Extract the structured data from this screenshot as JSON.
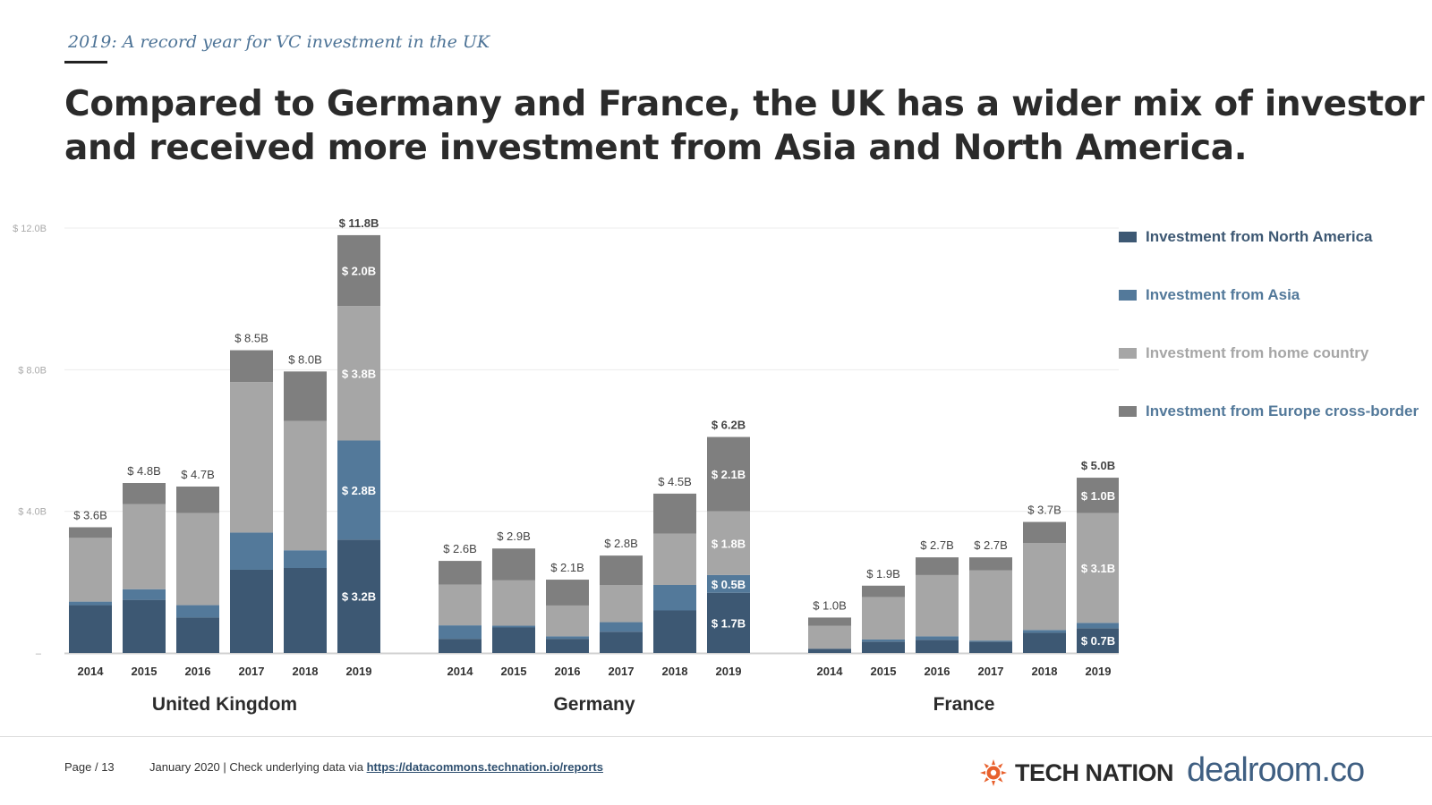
{
  "header": {
    "kicker": "2019: A record year for VC investment in the UK",
    "headline_line1": "Compared to Germany and France, the UK has a wider mix of investor",
    "headline_line2": "and received more investment from Asia and North America."
  },
  "legend": {
    "items": [
      {
        "label": "Investment from North America",
        "color": "#3d5873",
        "text_color": "#3d5873"
      },
      {
        "label": "Investment from Asia",
        "color": "#53799a",
        "text_color": "#53799a"
      },
      {
        "label": "Investment from home country",
        "color": "#a6a6a6",
        "text_color": "#a6a6a6"
      },
      {
        "label": "Investment from Europe cross-border",
        "color": "#7f7f7f",
        "text_color": "#53799a"
      }
    ]
  },
  "chart_data": {
    "type": "bar",
    "stacked": true,
    "ylim": [
      0,
      12
    ],
    "yticks": [
      0,
      4,
      8,
      12
    ],
    "ytick_labels": [
      "–",
      "$ 4.0B",
      "$ 8.0B",
      "$ 12.0B"
    ],
    "series_names": [
      "Investment from North America",
      "Investment from Asia",
      "Investment from home country",
      "Investment from Europe cross-border"
    ],
    "colors": [
      "#3d5873",
      "#53799a",
      "#a6a6a6",
      "#7f7f7f"
    ],
    "groups": [
      {
        "name": "United Kingdom",
        "bars": [
          {
            "year": "2014",
            "total_label": "$ 3.6B",
            "values": [
              1.35,
              0.1,
              1.8,
              0.3
            ],
            "segment_labels": [
              "",
              "",
              "",
              ""
            ]
          },
          {
            "year": "2015",
            "total_label": "$ 4.8B",
            "values": [
              1.5,
              0.3,
              2.4,
              0.6
            ],
            "segment_labels": [
              "",
              "",
              "",
              ""
            ]
          },
          {
            "year": "2016",
            "total_label": "$ 4.7B",
            "values": [
              1.0,
              0.35,
              2.6,
              0.75
            ],
            "segment_labels": [
              "",
              "",
              "",
              ""
            ]
          },
          {
            "year": "2017",
            "total_label": "$ 8.5B",
            "values": [
              2.35,
              1.05,
              4.25,
              0.9
            ],
            "segment_labels": [
              "",
              "",
              "",
              ""
            ]
          },
          {
            "year": "2018",
            "total_label": "$ 8.0B",
            "values": [
              2.4,
              0.5,
              3.65,
              1.4
            ],
            "segment_labels": [
              "",
              "",
              "",
              ""
            ]
          },
          {
            "year": "2019",
            "total_label": "$ 11.8B",
            "bold_total": true,
            "values": [
              3.2,
              2.8,
              3.8,
              2.0
            ],
            "segment_labels": [
              "$ 3.2B",
              "$ 2.8B",
              "$ 3.8B",
              "$ 2.0B"
            ]
          }
        ]
      },
      {
        "name": "Germany",
        "bars": [
          {
            "year": "2014",
            "total_label": "$ 2.6B",
            "values": [
              0.4,
              0.38,
              1.15,
              0.67
            ],
            "segment_labels": [
              "",
              "",
              "",
              ""
            ]
          },
          {
            "year": "2015",
            "total_label": "$ 2.9B",
            "values": [
              0.72,
              0.05,
              1.28,
              0.9
            ],
            "segment_labels": [
              "",
              "",
              "",
              ""
            ]
          },
          {
            "year": "2016",
            "total_label": "$ 2.1B",
            "values": [
              0.4,
              0.07,
              0.87,
              0.73
            ],
            "segment_labels": [
              "",
              "",
              "",
              ""
            ]
          },
          {
            "year": "2017",
            "total_label": "$ 2.8B",
            "values": [
              0.6,
              0.27,
              1.05,
              0.83
            ],
            "segment_labels": [
              "",
              "",
              "",
              ""
            ]
          },
          {
            "year": "2018",
            "total_label": "$ 4.5B",
            "values": [
              1.2,
              0.72,
              1.45,
              1.13
            ],
            "segment_labels": [
              "",
              "",
              "",
              ""
            ]
          },
          {
            "year": "2019",
            "total_label": "$ 6.2B",
            "bold_total": true,
            "values": [
              1.7,
              0.5,
              1.8,
              2.1
            ],
            "segment_labels": [
              "$ 1.7B",
              "$ 0.5B",
              "$ 1.8B",
              "$ 2.1B"
            ]
          }
        ]
      },
      {
        "name": "France",
        "bars": [
          {
            "year": "2014",
            "total_label": "$ 1.0B",
            "values": [
              0.12,
              0.0,
              0.65,
              0.23
            ],
            "segment_labels": [
              "",
              "",
              "",
              ""
            ]
          },
          {
            "year": "2015",
            "total_label": "$ 1.9B",
            "values": [
              0.32,
              0.06,
              1.2,
              0.32
            ],
            "segment_labels": [
              "",
              "",
              "",
              ""
            ]
          },
          {
            "year": "2016",
            "total_label": "$ 2.7B",
            "values": [
              0.37,
              0.1,
              1.73,
              0.5
            ],
            "segment_labels": [
              "",
              "",
              "",
              ""
            ]
          },
          {
            "year": "2017",
            "total_label": "$ 2.7B",
            "values": [
              0.32,
              0.03,
              1.98,
              0.37
            ],
            "segment_labels": [
              "",
              "",
              "",
              ""
            ]
          },
          {
            "year": "2018",
            "total_label": "$ 3.7B",
            "values": [
              0.57,
              0.08,
              2.45,
              0.6
            ],
            "segment_labels": [
              "",
              "",
              "",
              ""
            ]
          },
          {
            "year": "2019",
            "total_label": "$ 5.0B",
            "bold_total": true,
            "values": [
              0.7,
              0.15,
              3.1,
              1.0
            ],
            "segment_labels": [
              "$ 0.7B",
              "",
              "$ 3.1B",
              "$ 1.0B"
            ]
          }
        ]
      }
    ]
  },
  "footer": {
    "page": "Page / 13",
    "note_prefix": "January 2020 | Check underlying data via ",
    "link": "https://datacommons.technation.io/reports",
    "logo_tech_nation": "TECH NATION",
    "logo_dealroom": "dealroom.co"
  }
}
